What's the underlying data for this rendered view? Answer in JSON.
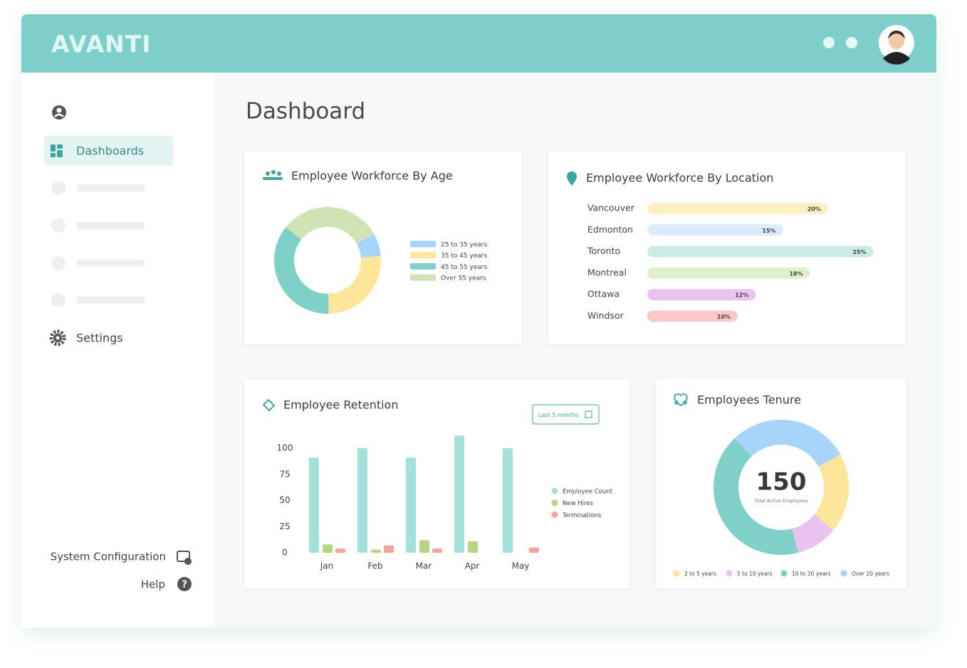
{
  "header": {
    "brand": "AVANTI"
  },
  "sidebar": {
    "items": [
      "Dashboards",
      "Settings"
    ],
    "footer": [
      "System Configuration",
      "Help"
    ]
  },
  "page_title": "Dashboard",
  "chart_data": [
    {
      "type": "donut",
      "title": "Employee Workforce By Age",
      "categories": [
        "25 to 35 years",
        "35 to 45 years",
        "45 to 55 years",
        "Over 55 years"
      ],
      "values": [
        7,
        26,
        36,
        31
      ],
      "colors": [
        "#a7d4fb",
        "#fde69a",
        "#7fd0c8",
        "#cfe3b4"
      ]
    },
    {
      "type": "bar",
      "orientation": "horizontal",
      "title": "Employee Workforce By Location",
      "categories": [
        "Vancouver",
        "Edmonton",
        "Toronto",
        "Montreal",
        "Ottawa",
        "Windsor"
      ],
      "values": [
        20,
        15,
        25,
        18,
        12,
        10
      ],
      "value_labels": [
        "20%",
        "15%",
        "25%",
        "18%",
        "12%",
        "10%"
      ],
      "colors": [
        "#fdf0c2",
        "#dcecfb",
        "#c9ede6",
        "#dff0cc",
        "#e8c4ef",
        "#fbc7c7"
      ]
    },
    {
      "type": "bar",
      "orientation": "vertical",
      "title": "Employee Retention",
      "button": "Last 5 months",
      "categories": [
        "Jan",
        "Feb",
        "Mar",
        "Apr",
        "May"
      ],
      "series": [
        {
          "name": "Employee Count",
          "color": "#a3e0d8",
          "values": [
            91,
            100,
            91,
            112,
            100
          ]
        },
        {
          "name": "New Hires",
          "color": "#b5d67e",
          "values": [
            8,
            3,
            12,
            11,
            null
          ]
        },
        {
          "name": "Terminations",
          "color": "#f7a29a",
          "values": [
            4,
            7,
            4,
            null,
            5
          ]
        }
      ],
      "ylim": [
        0,
        115
      ],
      "yticks": [
        0,
        25,
        50,
        75,
        100
      ]
    },
    {
      "type": "donut",
      "title": "Employees Tenure",
      "center_value": 150,
      "center_label": "Total Active Employees",
      "categories": [
        "2 to 5 years",
        "5 to 10 years",
        "10 to 20 years",
        "Over 20 years"
      ],
      "values": [
        19,
        10,
        42,
        29
      ],
      "colors": [
        "#fde69a",
        "#e7c3ef",
        "#7fd0c8",
        "#a7d4fb"
      ]
    }
  ]
}
